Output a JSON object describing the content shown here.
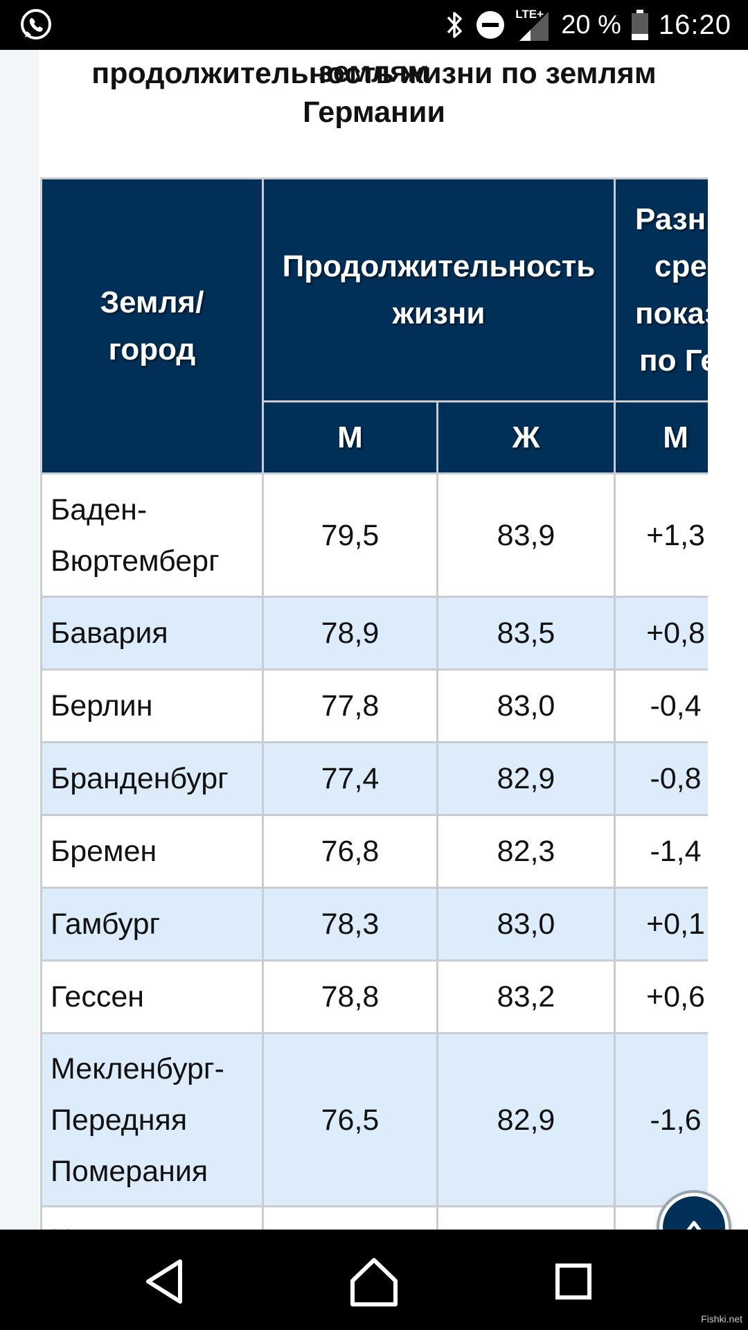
{
  "status_bar": {
    "network": "LTE+",
    "battery": "20 %",
    "time": "16:20"
  },
  "article": {
    "title_cut": "Средняя продолжительность жизни по землям",
    "title_line1": "продолжительность жизни по землям",
    "title_line2": "Германии"
  },
  "table": {
    "header": {
      "region_line1": "Земля/",
      "region_line2": "город",
      "life_line1": "Продолжительность",
      "life_line2": "жизни",
      "diff_lines": [
        "Разн",
        "сре",
        "показ",
        "по Ге"
      ],
      "m": "М",
      "f": "Ж",
      "diff_m": "М"
    },
    "rows": [
      {
        "region_line1": "Баден-",
        "region_line2": "Вюртемберг",
        "region_line3": "",
        "m": "79,5",
        "f": "83,9",
        "diff": "+1,3"
      },
      {
        "region_line1": "Бавария",
        "region_line2": "",
        "region_line3": "",
        "m": "78,9",
        "f": "83,5",
        "diff": "+0,8"
      },
      {
        "region_line1": "Берлин",
        "region_line2": "",
        "region_line3": "",
        "m": "77,8",
        "f": "83,0",
        "diff": "-0,4"
      },
      {
        "region_line1": "Бранденбург",
        "region_line2": "",
        "region_line3": "",
        "m": "77,4",
        "f": "82,9",
        "diff": "-0,8"
      },
      {
        "region_line1": "Бремен",
        "region_line2": "",
        "region_line3": "",
        "m": "76,8",
        "f": "82,3",
        "diff": "-1,4"
      },
      {
        "region_line1": "Гамбург",
        "region_line2": "",
        "region_line3": "",
        "m": "78,3",
        "f": "83,0",
        "diff": "+0,1"
      },
      {
        "region_line1": "Гессен",
        "region_line2": "",
        "region_line3": "",
        "m": "78,8",
        "f": "83,2",
        "diff": "+0,6"
      },
      {
        "region_line1": "Мекленбург-",
        "region_line2": "Передняя",
        "region_line3": "Померания",
        "m": "76,5",
        "f": "82,9",
        "diff": "-1,6"
      },
      {
        "region_line1": "Н",
        "region_line2": "",
        "region_line3": "",
        "m": "",
        "f": "",
        "diff": ""
      }
    ]
  },
  "watermark": "Fishki.net",
  "colors": {
    "header_bg": "#003057",
    "row_alt_bg": "#dcecfb",
    "border": "#c9cdd2"
  },
  "icons": {
    "app": "whatsapp-icon",
    "bluetooth": "bluetooth-icon",
    "dnd": "do-not-disturb-icon",
    "signal": "signal-icon",
    "battery": "battery-icon",
    "scroll_top": "chevron-up-icon",
    "back": "back-icon",
    "home": "home-icon",
    "recents": "recents-icon"
  }
}
